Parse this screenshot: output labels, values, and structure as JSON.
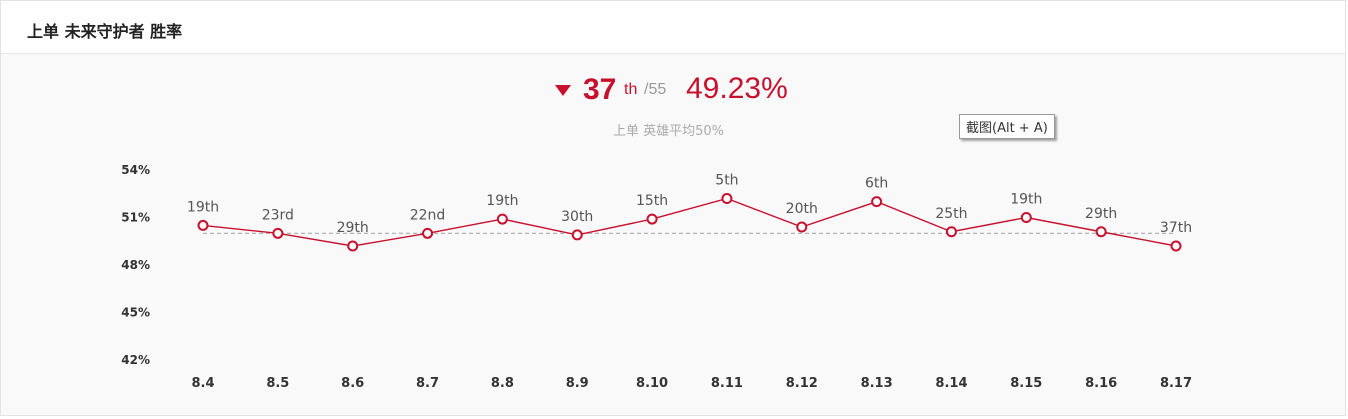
{
  "header": {
    "title": "上单 未来守护者 胜率"
  },
  "summary": {
    "rank": "37",
    "rank_suffix": "th",
    "rank_total": "/55",
    "winrate": "49.23%",
    "trend": "down",
    "subtitle": "上单 英雄平均50%"
  },
  "tooltip": {
    "text": "截图(Alt + A)"
  },
  "colors": {
    "accent": "#c8102e",
    "reference_line": "#aaaaaa"
  },
  "chart_data": {
    "type": "line",
    "title": "",
    "xlabel": "",
    "ylabel": "",
    "categories": [
      "8.4",
      "8.5",
      "8.6",
      "8.7",
      "8.8",
      "8.9",
      "8.10",
      "8.11",
      "8.12",
      "8.13",
      "8.14",
      "8.15",
      "8.16",
      "8.17"
    ],
    "ylim": [
      42,
      54
    ],
    "yticks": [
      "54%",
      "51%",
      "48%",
      "45%",
      "42%"
    ],
    "ytick_values": [
      54,
      51,
      48,
      45,
      42
    ],
    "reference_value": 50,
    "series": [
      {
        "values": [
          50.5,
          50.0,
          49.2,
          50.0,
          50.9,
          49.9,
          50.9,
          52.2,
          50.4,
          52.0,
          50.1,
          51.0,
          50.1,
          49.2
        ],
        "rank_labels": [
          "19th",
          "23rd",
          "29th",
          "22nd",
          "19th",
          "30th",
          "15th",
          "5th",
          "20th",
          "6th",
          "25th",
          "19th",
          "29th",
          "37th"
        ]
      }
    ],
    "grid": false,
    "legend": "none"
  }
}
